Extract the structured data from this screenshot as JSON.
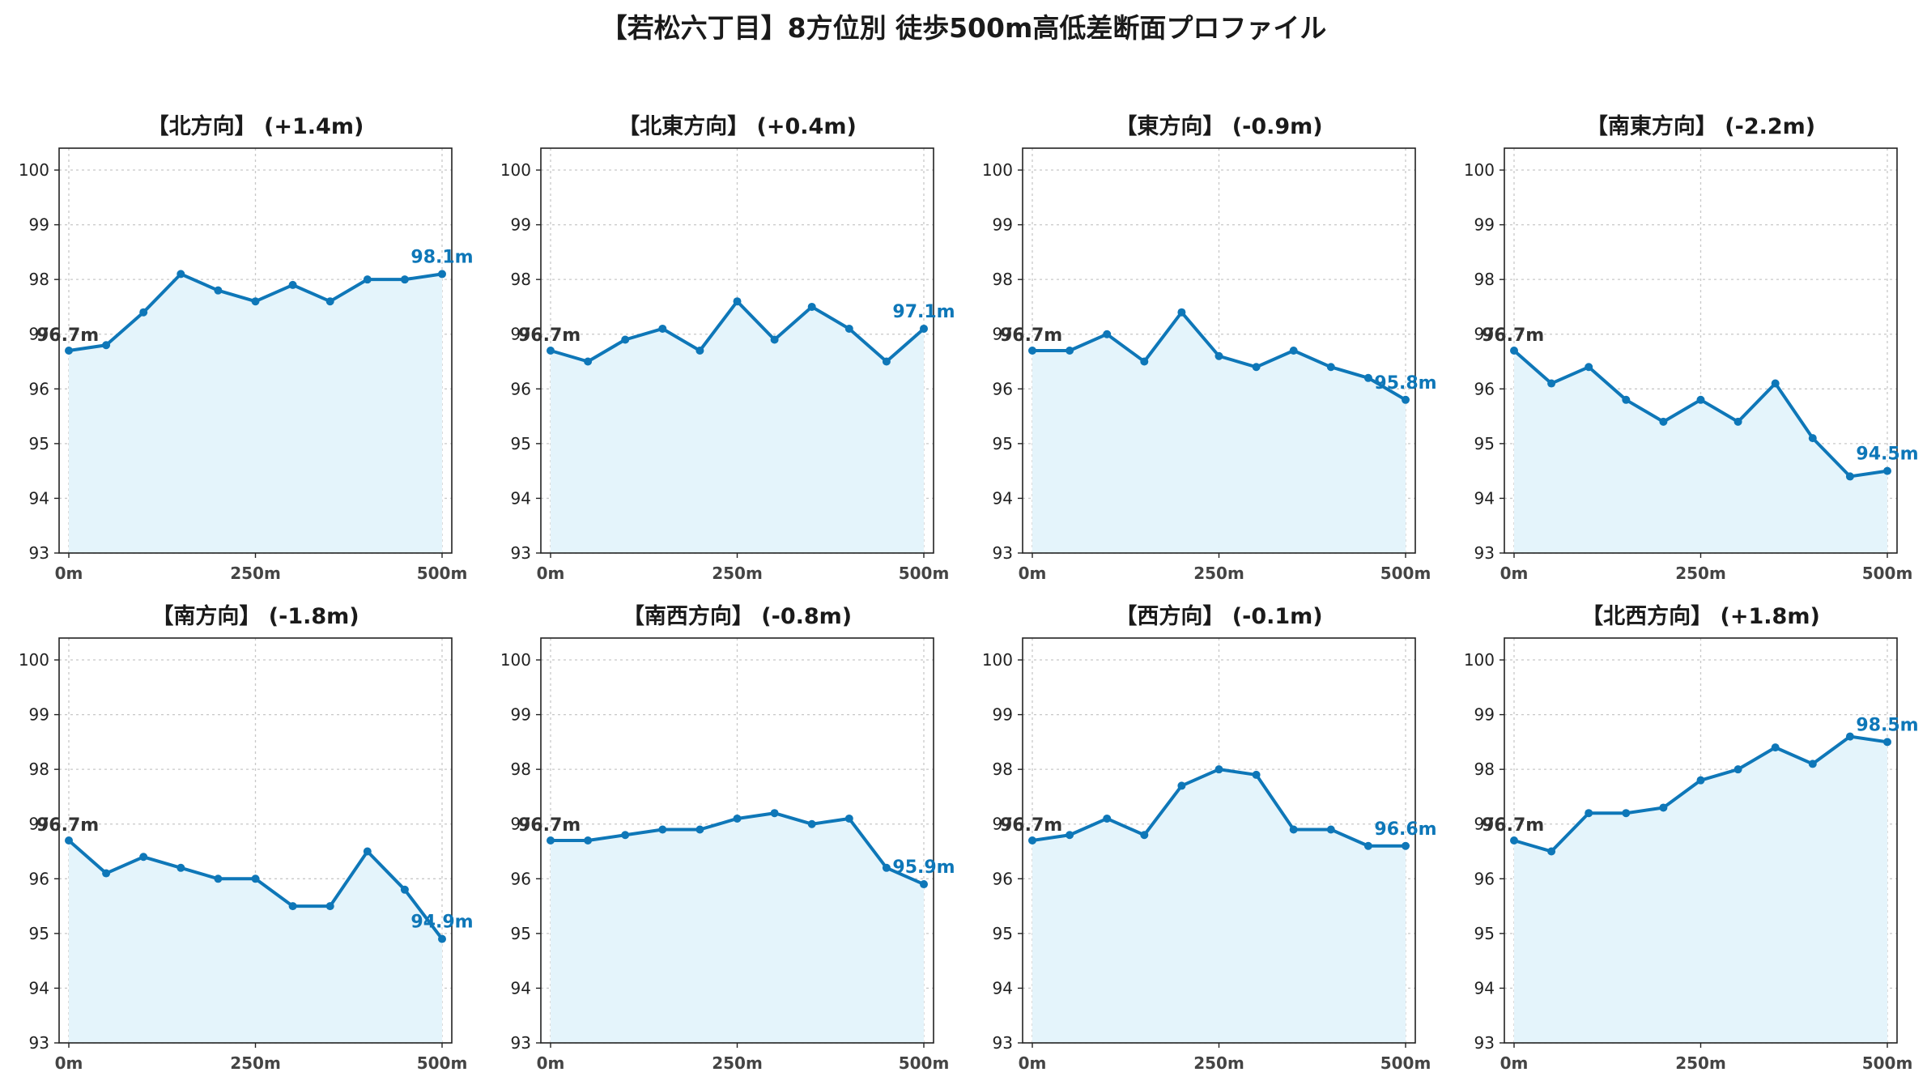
{
  "title": "【若松六丁目】8方位別 徒歩500m高低差断面プロファイル",
  "colors": {
    "line": "#0e77b8",
    "fill": "#e4f4fb",
    "grid": "#c8c8c8",
    "start_label": "#333333",
    "end_label": "#0e77b8"
  },
  "chart_data": [
    {
      "type": "area",
      "title": "【北方向】 (+1.4m)",
      "x": [
        0,
        50,
        100,
        150,
        200,
        250,
        300,
        350,
        400,
        450,
        500
      ],
      "values": [
        96.7,
        96.8,
        97.4,
        98.1,
        97.8,
        97.6,
        97.9,
        97.6,
        98.0,
        98.0,
        98.1
      ],
      "start_label": "96.7m",
      "end_label": "98.1m",
      "xticks": [
        "0m",
        "250m",
        "500m"
      ],
      "yticks": [
        "93",
        "94",
        "95",
        "96",
        "97",
        "98",
        "99",
        "100"
      ],
      "xlim": [
        0,
        500
      ],
      "ylim": [
        93,
        100.4
      ],
      "grid": true
    },
    {
      "type": "area",
      "title": "【北東方向】 (+0.4m)",
      "x": [
        0,
        50,
        100,
        150,
        200,
        250,
        300,
        350,
        400,
        450,
        500
      ],
      "values": [
        96.7,
        96.5,
        96.9,
        97.1,
        96.7,
        97.6,
        96.9,
        97.5,
        97.1,
        96.5,
        97.1
      ],
      "start_label": "96.7m",
      "end_label": "97.1m",
      "xticks": [
        "0m",
        "250m",
        "500m"
      ],
      "yticks": [
        "93",
        "94",
        "95",
        "96",
        "97",
        "98",
        "99",
        "100"
      ],
      "xlim": [
        0,
        500
      ],
      "ylim": [
        93,
        100.4
      ],
      "grid": true
    },
    {
      "type": "area",
      "title": "【東方向】 (-0.9m)",
      "x": [
        0,
        50,
        100,
        150,
        200,
        250,
        300,
        350,
        400,
        450,
        500
      ],
      "values": [
        96.7,
        96.7,
        97.0,
        96.5,
        97.4,
        96.6,
        96.4,
        96.7,
        96.4,
        96.2,
        95.8
      ],
      "start_label": "96.7m",
      "end_label": "95.8m",
      "xticks": [
        "0m",
        "250m",
        "500m"
      ],
      "yticks": [
        "93",
        "94",
        "95",
        "96",
        "97",
        "98",
        "99",
        "100"
      ],
      "xlim": [
        0,
        500
      ],
      "ylim": [
        93,
        100.4
      ],
      "grid": true
    },
    {
      "type": "area",
      "title": "【南東方向】 (-2.2m)",
      "x": [
        0,
        50,
        100,
        150,
        200,
        250,
        300,
        350,
        400,
        450,
        500
      ],
      "values": [
        96.7,
        96.1,
        96.4,
        95.8,
        95.4,
        95.8,
        95.4,
        96.1,
        95.1,
        94.4,
        94.5
      ],
      "start_label": "96.7m",
      "end_label": "94.5m",
      "xticks": [
        "0m",
        "250m",
        "500m"
      ],
      "yticks": [
        "93",
        "94",
        "95",
        "96",
        "97",
        "98",
        "99",
        "100"
      ],
      "xlim": [
        0,
        500
      ],
      "ylim": [
        93,
        100.4
      ],
      "grid": true
    },
    {
      "type": "area",
      "title": "【南方向】 (-1.8m)",
      "x": [
        0,
        50,
        100,
        150,
        200,
        250,
        300,
        350,
        400,
        450,
        500
      ],
      "values": [
        96.7,
        96.1,
        96.4,
        96.2,
        96.0,
        96.0,
        95.5,
        95.5,
        96.5,
        95.8,
        94.9
      ],
      "start_label": "96.7m",
      "end_label": "94.9m",
      "xticks": [
        "0m",
        "250m",
        "500m"
      ],
      "yticks": [
        "93",
        "94",
        "95",
        "96",
        "97",
        "98",
        "99",
        "100"
      ],
      "xlim": [
        0,
        500
      ],
      "ylim": [
        93,
        100.4
      ],
      "grid": true
    },
    {
      "type": "area",
      "title": "【南西方向】 (-0.8m)",
      "x": [
        0,
        50,
        100,
        150,
        200,
        250,
        300,
        350,
        400,
        450,
        500
      ],
      "values": [
        96.7,
        96.7,
        96.8,
        96.9,
        96.9,
        97.1,
        97.2,
        97.0,
        97.1,
        96.2,
        95.9
      ],
      "start_label": "96.7m",
      "end_label": "95.9m",
      "xticks": [
        "0m",
        "250m",
        "500m"
      ],
      "yticks": [
        "93",
        "94",
        "95",
        "96",
        "97",
        "98",
        "99",
        "100"
      ],
      "xlim": [
        0,
        500
      ],
      "ylim": [
        93,
        100.4
      ],
      "grid": true
    },
    {
      "type": "area",
      "title": "【西方向】 (-0.1m)",
      "x": [
        0,
        50,
        100,
        150,
        200,
        250,
        300,
        350,
        400,
        450,
        500
      ],
      "values": [
        96.7,
        96.8,
        97.1,
        96.8,
        97.7,
        98.0,
        97.9,
        96.9,
        96.9,
        96.6,
        96.6
      ],
      "start_label": "96.7m",
      "end_label": "96.6m",
      "xticks": [
        "0m",
        "250m",
        "500m"
      ],
      "yticks": [
        "93",
        "94",
        "95",
        "96",
        "97",
        "98",
        "99",
        "100"
      ],
      "xlim": [
        0,
        500
      ],
      "ylim": [
        93,
        100.4
      ],
      "grid": true
    },
    {
      "type": "area",
      "title": "【北西方向】 (+1.8m)",
      "x": [
        0,
        50,
        100,
        150,
        200,
        250,
        300,
        350,
        400,
        450,
        500
      ],
      "values": [
        96.7,
        96.5,
        97.2,
        97.2,
        97.3,
        97.8,
        98.0,
        98.4,
        98.1,
        98.6,
        98.5
      ],
      "start_label": "96.7m",
      "end_label": "98.5m",
      "xticks": [
        "0m",
        "250m",
        "500m"
      ],
      "yticks": [
        "93",
        "94",
        "95",
        "96",
        "97",
        "98",
        "99",
        "100"
      ],
      "xlim": [
        0,
        500
      ],
      "ylim": [
        93,
        100.4
      ],
      "grid": true
    }
  ]
}
